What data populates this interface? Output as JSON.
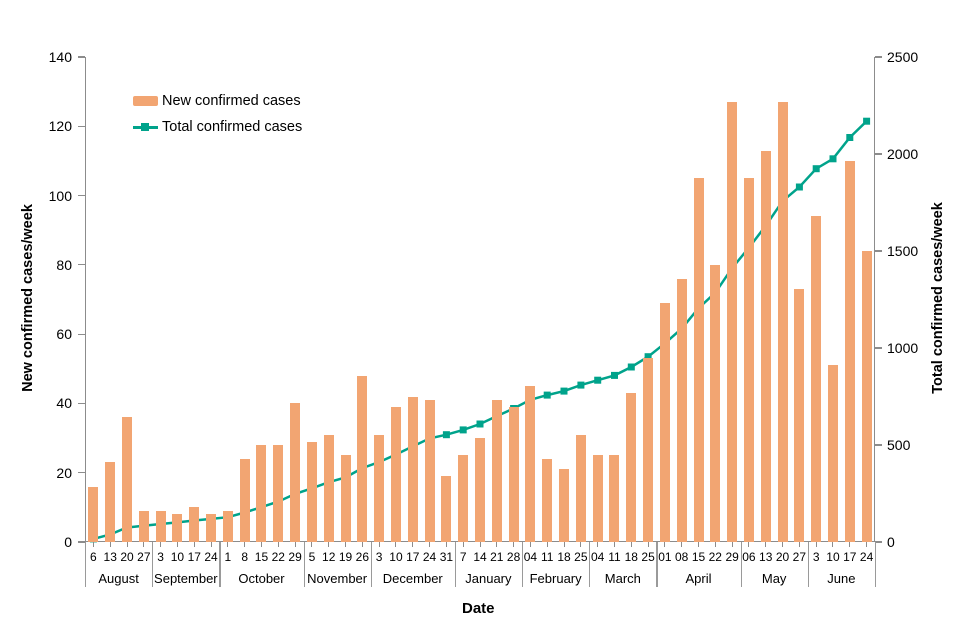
{
  "legend": {
    "bar_label": "New confirmed cases",
    "line_label": "Total confirmed cases"
  },
  "axes": {
    "left": {
      "title": "New confirmed cases/week"
    },
    "right": {
      "title": "Total confirmed cases/week"
    },
    "x_title": "Date"
  },
  "colors": {
    "bar": "#F2A572",
    "line": "#00A38B",
    "axis": "#8C8C8C",
    "text": "#000000"
  },
  "chart_data": {
    "type": "combo-bar-line",
    "title": "",
    "x_label": "Date",
    "grid": false,
    "legend_position": "top-left-inside",
    "left_axis": {
      "label": "New confirmed cases/week",
      "range": [
        0,
        140
      ],
      "ticks": [
        0,
        20,
        40,
        60,
        80,
        100,
        120,
        140
      ]
    },
    "right_axis": {
      "label": "Total confirmed cases/week",
      "range": [
        0,
        2500
      ],
      "ticks": [
        0,
        500,
        1000,
        1500,
        2000,
        2500
      ]
    },
    "x_groups": [
      {
        "month": "August",
        "days": [
          "6",
          "13",
          "20",
          "27"
        ]
      },
      {
        "month": "September",
        "days": [
          "3",
          "10",
          "17",
          "24"
        ]
      },
      {
        "month": "October",
        "days": [
          "1",
          "8",
          "15",
          "22",
          "29"
        ]
      },
      {
        "month": "November",
        "days": [
          "5",
          "12",
          "19",
          "26"
        ]
      },
      {
        "month": "December",
        "days": [
          "3",
          "10",
          "17",
          "24",
          "31"
        ]
      },
      {
        "month": "January",
        "days": [
          "7",
          "14",
          "21",
          "28"
        ]
      },
      {
        "month": "February",
        "days": [
          "04",
          "11",
          "18",
          "25"
        ]
      },
      {
        "month": "March",
        "days": [
          "04",
          "11",
          "18",
          "25"
        ]
      },
      {
        "month": "April",
        "days": [
          "01",
          "08",
          "15",
          "22",
          "29"
        ]
      },
      {
        "month": "May",
        "days": [
          "06",
          "13",
          "20",
          "27"
        ]
      },
      {
        "month": "June",
        "days": [
          "3",
          "10",
          "17",
          "24"
        ]
      }
    ],
    "series": [
      {
        "name": "New confirmed cases",
        "type": "bar",
        "axis": "left",
        "values": [
          16,
          23,
          36,
          9,
          9,
          8,
          10,
          8,
          9,
          24,
          28,
          28,
          40,
          29,
          31,
          25,
          48,
          31,
          39,
          42,
          41,
          19,
          25,
          30,
          41,
          39,
          45,
          24,
          21,
          31,
          25,
          25,
          43,
          53,
          69,
          76,
          105,
          80,
          127,
          105,
          113,
          127,
          73,
          94,
          51,
          110,
          84
        ]
      },
      {
        "name": "Total confirmed cases",
        "type": "line",
        "axis": "right",
        "values": [
          16,
          39,
          75,
          84,
          93,
          101,
          111,
          119,
          128,
          152,
          180,
          208,
          248,
          277,
          308,
          333,
          381,
          412,
          451,
          493,
          534,
          553,
          578,
          608,
          649,
          688,
          733,
          757,
          778,
          809,
          834,
          859,
          902,
          955,
          1024,
          1100,
          1205,
          1285,
          1412,
          1517,
          1630,
          1757,
          1830,
          1924,
          1975,
          2085,
          2169
        ]
      }
    ]
  }
}
